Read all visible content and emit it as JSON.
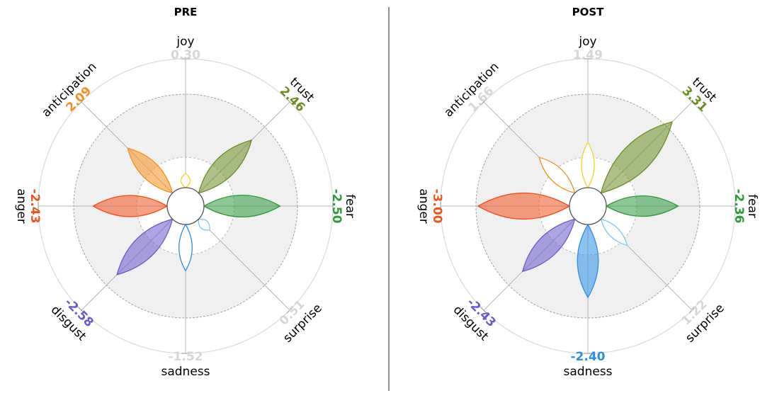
{
  "colors": {
    "joy": "#f7d21f",
    "trust": "#6b8e23",
    "fear": "#2e9b3a",
    "surprise": "#7fc8ee",
    "sadness": "#2e8fe6",
    "disgust": "#6a5acd",
    "anger": "#f0521e",
    "anticipation": "#f4901e",
    "neutral": "#d6d6d6"
  },
  "chart_data": [
    {
      "type": "radar",
      "title": "PRE",
      "categories": [
        "joy",
        "trust",
        "fear",
        "surprise",
        "sadness",
        "disgust",
        "anger",
        "anticipation"
      ],
      "values": [
        0.3,
        2.46,
        -2.5,
        0.51,
        -1.52,
        -2.58,
        -2.43,
        2.09
      ],
      "value_labels": [
        "0.30",
        "2.46",
        "-2.50",
        "0.51",
        "-1.52",
        "-2.58",
        "-2.43",
        "2.09"
      ],
      "filled": [
        false,
        true,
        true,
        false,
        false,
        true,
        true,
        true
      ],
      "highlighted": [
        false,
        true,
        true,
        false,
        false,
        true,
        true,
        true
      ],
      "radius_range": [
        0,
        3
      ],
      "grid": true
    },
    {
      "type": "radar",
      "title": "POST",
      "categories": [
        "joy",
        "trust",
        "fear",
        "surprise",
        "sadness",
        "disgust",
        "anger",
        "anticipation"
      ],
      "values": [
        1.49,
        3.31,
        -2.36,
        1.22,
        -2.4,
        -2.43,
        -3.0,
        1.66
      ],
      "value_labels": [
        "1.49",
        "3.31",
        "-2.36",
        "1.22",
        "-2.40",
        "-2.43",
        "-3.00",
        "1.66"
      ],
      "filled": [
        false,
        true,
        true,
        false,
        true,
        true,
        true,
        false
      ],
      "highlighted": [
        false,
        true,
        true,
        false,
        true,
        true,
        true,
        false
      ],
      "radius_range": [
        0,
        3
      ],
      "grid": true
    }
  ]
}
